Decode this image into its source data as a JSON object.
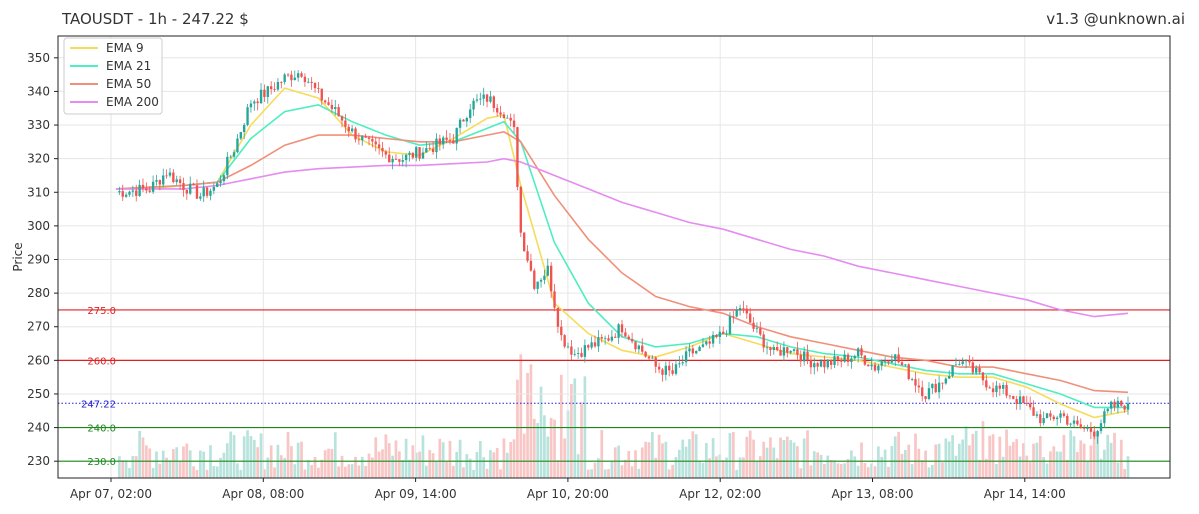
{
  "header": {
    "title": "TAOUSDT - 1h - 247.22 $",
    "credit": "v1.3 @unknown.ai"
  },
  "chart_data": {
    "type": "candlestick",
    "symbol": "TAOUSDT",
    "interval": "1h",
    "last_price": 247.22,
    "ylabel": "Price",
    "ylim": [
      225,
      355
    ],
    "yticks": [
      230,
      240,
      250,
      260,
      270,
      280,
      290,
      300,
      310,
      320,
      330,
      340,
      350
    ],
    "xticks": [
      "Apr 07, 02:00",
      "Apr 08, 08:00",
      "Apr 09, 14:00",
      "Apr 10, 20:00",
      "Apr 12, 02:00",
      "Apr 13, 08:00",
      "Apr 14, 14:00"
    ],
    "grid": true,
    "legend_position": "top-left",
    "series": [
      {
        "name": "EMA 9",
        "color": "#f5dc5a",
        "points": [
          [
            0,
            311
          ],
          [
            10,
            311
          ],
          [
            20,
            312
          ],
          [
            30,
            313
          ],
          [
            40,
            330
          ],
          [
            50,
            341
          ],
          [
            60,
            338
          ],
          [
            70,
            327
          ],
          [
            80,
            322
          ],
          [
            90,
            321
          ],
          [
            100,
            326
          ],
          [
            110,
            332
          ],
          [
            115,
            333
          ],
          [
            120,
            312
          ],
          [
            130,
            277
          ],
          [
            140,
            268
          ],
          [
            150,
            263
          ],
          [
            160,
            261
          ],
          [
            170,
            264
          ],
          [
            180,
            268
          ],
          [
            190,
            265
          ],
          [
            200,
            262
          ],
          [
            210,
            261
          ],
          [
            220,
            260
          ],
          [
            230,
            258
          ],
          [
            240,
            256
          ],
          [
            250,
            255
          ],
          [
            260,
            255
          ],
          [
            270,
            252
          ],
          [
            280,
            247
          ],
          [
            290,
            243
          ],
          [
            300,
            245
          ]
        ]
      },
      {
        "name": "EMA 21",
        "color": "#4deec0",
        "points": [
          [
            0,
            311
          ],
          [
            10,
            311.5
          ],
          [
            20,
            312
          ],
          [
            30,
            313
          ],
          [
            40,
            326
          ],
          [
            50,
            334
          ],
          [
            60,
            336
          ],
          [
            70,
            331
          ],
          [
            80,
            327
          ],
          [
            90,
            324
          ],
          [
            100,
            325
          ],
          [
            110,
            329
          ],
          [
            115,
            331
          ],
          [
            120,
            325
          ],
          [
            130,
            295
          ],
          [
            140,
            277
          ],
          [
            150,
            267
          ],
          [
            160,
            264
          ],
          [
            170,
            265
          ],
          [
            180,
            268
          ],
          [
            190,
            267
          ],
          [
            200,
            264
          ],
          [
            210,
            262
          ],
          [
            220,
            261
          ],
          [
            230,
            259
          ],
          [
            240,
            257
          ],
          [
            250,
            256
          ],
          [
            260,
            256
          ],
          [
            270,
            253
          ],
          [
            280,
            250
          ],
          [
            290,
            246
          ],
          [
            300,
            246
          ]
        ]
      },
      {
        "name": "EMA 50",
        "color": "#f0907a",
        "points": [
          [
            0,
            311
          ],
          [
            10,
            311.5
          ],
          [
            20,
            312
          ],
          [
            30,
            313
          ],
          [
            40,
            318
          ],
          [
            50,
            324
          ],
          [
            60,
            327
          ],
          [
            70,
            327
          ],
          [
            80,
            326
          ],
          [
            90,
            325
          ],
          [
            100,
            325
          ],
          [
            110,
            327
          ],
          [
            115,
            328
          ],
          [
            120,
            325
          ],
          [
            130,
            309
          ],
          [
            140,
            296
          ],
          [
            150,
            286
          ],
          [
            160,
            279
          ],
          [
            170,
            276
          ],
          [
            180,
            274
          ],
          [
            190,
            270
          ],
          [
            200,
            267
          ],
          [
            210,
            265
          ],
          [
            220,
            263
          ],
          [
            230,
            261
          ],
          [
            240,
            260
          ],
          [
            250,
            258
          ],
          [
            260,
            258
          ],
          [
            270,
            256
          ],
          [
            280,
            254
          ],
          [
            290,
            251
          ],
          [
            300,
            250.5
          ]
        ]
      },
      {
        "name": "EMA 200",
        "color": "#e58cf0",
        "points": [
          [
            0,
            311
          ],
          [
            10,
            311
          ],
          [
            20,
            311
          ],
          [
            30,
            312
          ],
          [
            40,
            314
          ],
          [
            50,
            316
          ],
          [
            60,
            317
          ],
          [
            70,
            317.5
          ],
          [
            80,
            318
          ],
          [
            90,
            318
          ],
          [
            100,
            318.5
          ],
          [
            110,
            319
          ],
          [
            115,
            320
          ],
          [
            120,
            319
          ],
          [
            130,
            315
          ],
          [
            140,
            311
          ],
          [
            150,
            307
          ],
          [
            160,
            304
          ],
          [
            170,
            301
          ],
          [
            180,
            299
          ],
          [
            190,
            296
          ],
          [
            200,
            293
          ],
          [
            210,
            291
          ],
          [
            220,
            288
          ],
          [
            230,
            286
          ],
          [
            240,
            284
          ],
          [
            250,
            282
          ],
          [
            260,
            280
          ],
          [
            270,
            278
          ],
          [
            280,
            275
          ],
          [
            290,
            273
          ],
          [
            300,
            274
          ]
        ]
      }
    ],
    "levels": [
      {
        "value": 275.0,
        "label": "275.0",
        "color": "#e02020",
        "style": "solid"
      },
      {
        "value": 260.0,
        "label": "260.0",
        "color": "#e02020",
        "style": "solid"
      },
      {
        "value": 247.22,
        "label": "247.22",
        "color": "#2020d0",
        "style": "dotted"
      },
      {
        "value": 240.0,
        "label": "240.0",
        "color": "#1a8a1a",
        "style": "solid"
      },
      {
        "value": 230.0,
        "label": "230.0",
        "color": "#1a8a1a",
        "style": "solid"
      }
    ],
    "candle_anchors": [
      [
        0,
        310
      ],
      [
        10,
        311
      ],
      [
        15,
        316
      ],
      [
        20,
        312
      ],
      [
        25,
        309
      ],
      [
        30,
        312
      ],
      [
        35,
        323
      ],
      [
        40,
        337
      ],
      [
        45,
        340
      ],
      [
        50,
        344
      ],
      [
        55,
        346
      ],
      [
        60,
        339
      ],
      [
        65,
        334
      ],
      [
        70,
        328
      ],
      [
        75,
        324
      ],
      [
        80,
        321
      ],
      [
        85,
        320
      ],
      [
        90,
        322
      ],
      [
        95,
        324
      ],
      [
        100,
        326
      ],
      [
        105,
        336
      ],
      [
        110,
        338
      ],
      [
        115,
        334
      ],
      [
        118,
        328
      ],
      [
        120,
        298
      ],
      [
        124,
        283
      ],
      [
        128,
        287
      ],
      [
        132,
        267
      ],
      [
        136,
        262
      ],
      [
        140,
        264
      ],
      [
        145,
        266
      ],
      [
        150,
        270
      ],
      [
        155,
        264
      ],
      [
        160,
        258
      ],
      [
        165,
        256
      ],
      [
        170,
        262
      ],
      [
        175,
        264
      ],
      [
        180,
        268
      ],
      [
        185,
        276
      ],
      [
        190,
        268
      ],
      [
        195,
        262
      ],
      [
        200,
        264
      ],
      [
        205,
        260
      ],
      [
        210,
        259
      ],
      [
        215,
        260
      ],
      [
        220,
        262
      ],
      [
        225,
        258
      ],
      [
        230,
        262
      ],
      [
        235,
        256
      ],
      [
        240,
        250
      ],
      [
        245,
        254
      ],
      [
        250,
        260
      ],
      [
        255,
        256
      ],
      [
        260,
        252
      ],
      [
        265,
        250
      ],
      [
        270,
        246
      ],
      [
        275,
        242
      ],
      [
        280,
        244
      ],
      [
        285,
        240
      ],
      [
        290,
        239
      ],
      [
        295,
        246
      ],
      [
        300,
        247.22
      ]
    ],
    "colors": {
      "up": "#26a69a",
      "down": "#ef5350",
      "vol_up": "#b8e3dd",
      "vol_down": "#f7c6c5"
    }
  }
}
